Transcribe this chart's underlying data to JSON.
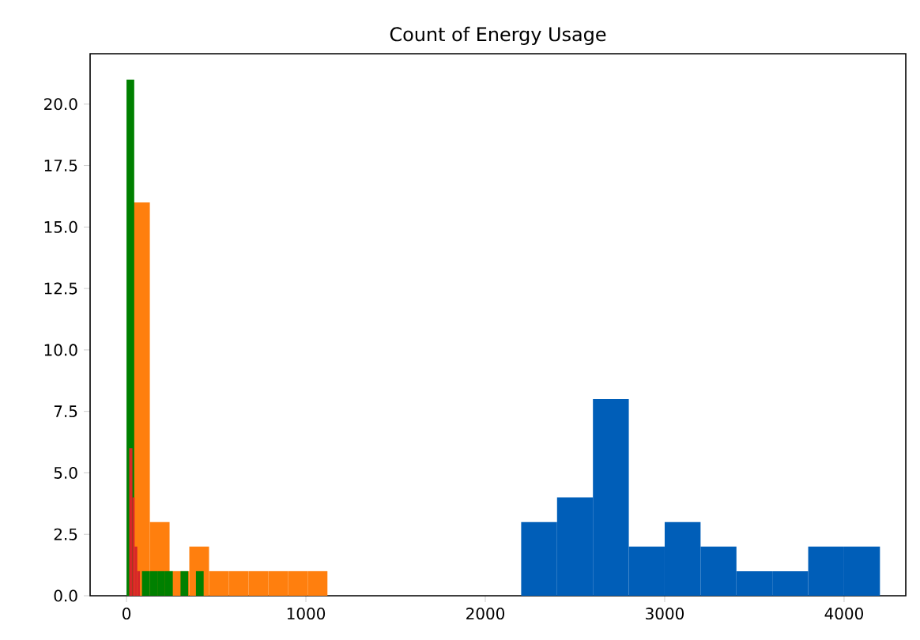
{
  "chart_data": {
    "type": "histogram",
    "title": "Count of Energy Usage",
    "bins": [
      2200,
      2400,
      2600,
      2800,
      3000,
      3200,
      3400,
      3600,
      3800,
      4000,
      4200
    ],
    "series": [
      {
        "color": "#005eb8",
        "values": [
          3,
          4,
          8,
          2,
          3,
          2,
          1,
          1,
          2,
          2
        ]
      },
      {
        "color": "#ff7f0e",
        "bins": [
          20,
          130,
          240,
          350,
          460,
          570,
          680,
          790,
          900,
          1010,
          1120
        ],
        "values": [
          16,
          3,
          1,
          2,
          1,
          1,
          1,
          1,
          1,
          1
        ]
      },
      {
        "color": "#008000",
        "bins": [
          0,
          43,
          86,
          129,
          172,
          215,
          258,
          301,
          344,
          387,
          430
        ],
        "values": [
          21,
          0,
          1,
          1,
          1,
          1,
          0,
          1,
          0,
          1
        ]
      },
      {
        "color": "#d62728",
        "bins": [
          15,
          33,
          45,
          60,
          75
        ],
        "values": [
          6,
          4,
          2,
          1
        ]
      }
    ],
    "xlim": [
      -203,
      4344
    ],
    "ylim": [
      0,
      22.05
    ],
    "xticks": [
      {
        "value": 0,
        "label": "0"
      },
      {
        "value": 1000,
        "label": "1000"
      },
      {
        "value": 2000,
        "label": "2000"
      },
      {
        "value": 3000,
        "label": "3000"
      },
      {
        "value": 4000,
        "label": "4000"
      }
    ],
    "yticks": [
      {
        "value": 0,
        "label": "0.0"
      },
      {
        "value": 2.5,
        "label": "2.5"
      },
      {
        "value": 5,
        "label": "5.0"
      },
      {
        "value": 7.5,
        "label": "7.5"
      },
      {
        "value": 10,
        "label": "10.0"
      },
      {
        "value": 12.5,
        "label": "12.5"
      },
      {
        "value": 15,
        "label": "15.0"
      },
      {
        "value": 17.5,
        "label": "17.5"
      },
      {
        "value": 20,
        "label": "20.0"
      }
    ],
    "grid": false
  }
}
